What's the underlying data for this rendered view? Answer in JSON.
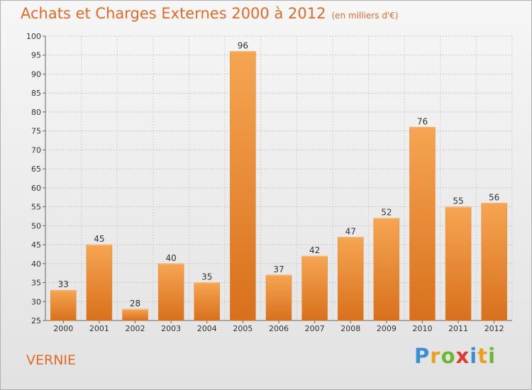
{
  "chart_data": {
    "type": "bar",
    "title": "Achats et Charges Externes 2000 à 2012",
    "subtitle": "(en milliers d'€)",
    "categories": [
      "2000",
      "2001",
      "2002",
      "2003",
      "2004",
      "2005",
      "2006",
      "2007",
      "2008",
      "2009",
      "2010",
      "2011",
      "2012"
    ],
    "values": [
      33,
      45,
      28,
      40,
      35,
      96,
      37,
      42,
      47,
      52,
      76,
      55,
      56
    ],
    "ylim": [
      25,
      100
    ],
    "yticks": [
      25,
      30,
      35,
      40,
      45,
      50,
      55,
      60,
      65,
      70,
      75,
      80,
      85,
      90,
      95,
      100
    ],
    "grid": true,
    "bar_color": "#f28a2c"
  },
  "footer": {
    "town": "VERNIE",
    "logo_letters": [
      {
        "char": "P",
        "color": "#3a8fd4"
      },
      {
        "char": "r",
        "color": "#e9a21e"
      },
      {
        "char": "o",
        "color": "#6bb833"
      },
      {
        "char": "x",
        "color": "#e23b2a"
      },
      {
        "char": "i",
        "color": "#3a8fd4"
      },
      {
        "char": "t",
        "color": "#e9a21e"
      },
      {
        "char": "i",
        "color": "#6bb833"
      }
    ]
  }
}
